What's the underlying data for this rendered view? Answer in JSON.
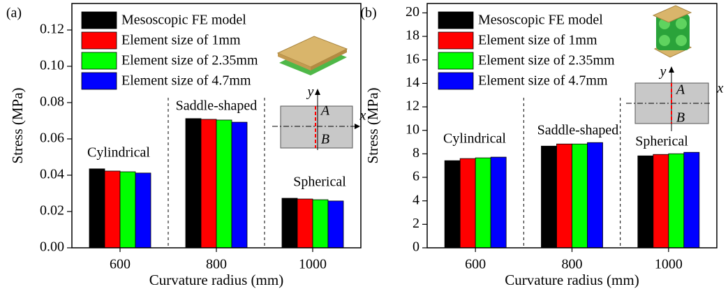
{
  "chart_data": [
    {
      "type": "bar",
      "panel_label": "(a)",
      "x_label": "Curvature radius (mm)",
      "y_label": "Stress (MPa)",
      "categories": [
        "600",
        "800",
        "1000"
      ],
      "series": [
        {
          "name": "Mesoscopic FE model",
          "color": "#000000",
          "values": [
            0.0435,
            0.0712,
            0.0273
          ]
        },
        {
          "name": "Element size of 1mm",
          "color": "#ff0000",
          "values": [
            0.0423,
            0.0708,
            0.0269
          ]
        },
        {
          "name": "Element size of 2.35mm",
          "color": "#00ff00",
          "values": [
            0.0419,
            0.0704,
            0.0265
          ]
        },
        {
          "name": "Element size of 4.7mm",
          "color": "#0000ff",
          "values": [
            0.0412,
            0.0692,
            0.0258
          ]
        }
      ],
      "annotations": [
        "Cylindrical",
        "Saddle-shaped",
        "Spherical"
      ],
      "inset_labels": [
        "y",
        "x",
        "A",
        "B"
      ],
      "ylim": [
        0,
        0.1346
      ],
      "yticks": [
        {
          "value": 0,
          "label": "0.00"
        },
        0.02,
        0.04,
        0.06,
        0.08,
        {
          "value": 0.1,
          "label": "0.10"
        },
        0.12
      ]
    },
    {
      "type": "bar",
      "panel_label": "(b)",
      "x_label": "Curvature radius (mm)",
      "y_label": "Stress (MPa)",
      "categories": [
        "600",
        "800",
        "1000"
      ],
      "series": [
        {
          "name": "Mesoscopic FE model",
          "color": "#000000",
          "values": [
            7.42,
            8.66,
            7.83
          ]
        },
        {
          "name": "Element size of 1mm",
          "color": "#ff0000",
          "values": [
            7.6,
            8.84,
            7.95
          ]
        },
        {
          "name": "Element size of 2.35mm",
          "color": "#00ff00",
          "values": [
            7.66,
            8.84,
            8.01
          ]
        },
        {
          "name": "Element size of 4.7mm",
          "color": "#0000ff",
          "values": [
            7.72,
            8.96,
            8.13
          ]
        }
      ],
      "annotations": [
        "Cylindrical",
        "Saddle-shaped",
        "Spherical"
      ],
      "inset_labels": [
        "y",
        "x",
        "A",
        "B"
      ],
      "ylim": [
        0,
        20.8
      ],
      "yticks": [
        0,
        2,
        4,
        6,
        8,
        10,
        12,
        14,
        16,
        18,
        20
      ]
    }
  ]
}
